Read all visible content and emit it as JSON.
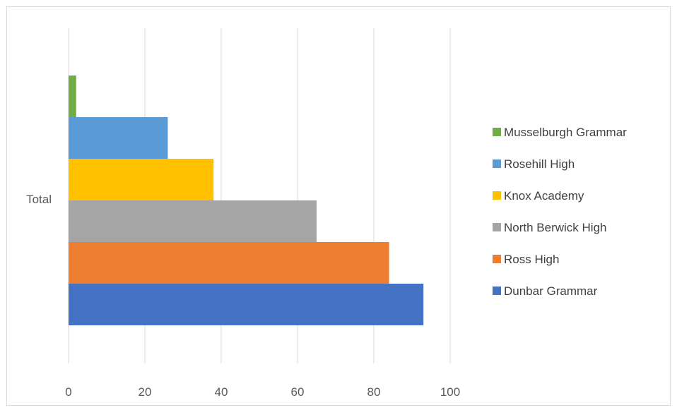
{
  "chart_data": {
    "type": "bar",
    "orientation": "horizontal",
    "categories": [
      "Total"
    ],
    "series": [
      {
        "name": "Dunbar Grammar",
        "values": [
          93
        ],
        "color": "#4472C4"
      },
      {
        "name": "Ross High",
        "values": [
          84
        ],
        "color": "#ED7D31"
      },
      {
        "name": "North Berwick High",
        "values": [
          65
        ],
        "color": "#A5A5A5"
      },
      {
        "name": "Knox Academy",
        "values": [
          38
        ],
        "color": "#FFC000"
      },
      {
        "name": "Rosehill High",
        "values": [
          26
        ],
        "color": "#5B9BD5"
      },
      {
        "name": "Musselburgh Grammar",
        "values": [
          2
        ],
        "color": "#70AD47"
      }
    ],
    "xlim": [
      0,
      100
    ],
    "xticks": [
      "0",
      "20",
      "40",
      "60",
      "80",
      "100"
    ],
    "grid": "vertical",
    "legend_position": "right",
    "legend_order": [
      "Musselburgh Grammar",
      "Rosehill High",
      "Knox Academy",
      "North Berwick High",
      "Ross High",
      "Dunbar Grammar"
    ]
  }
}
